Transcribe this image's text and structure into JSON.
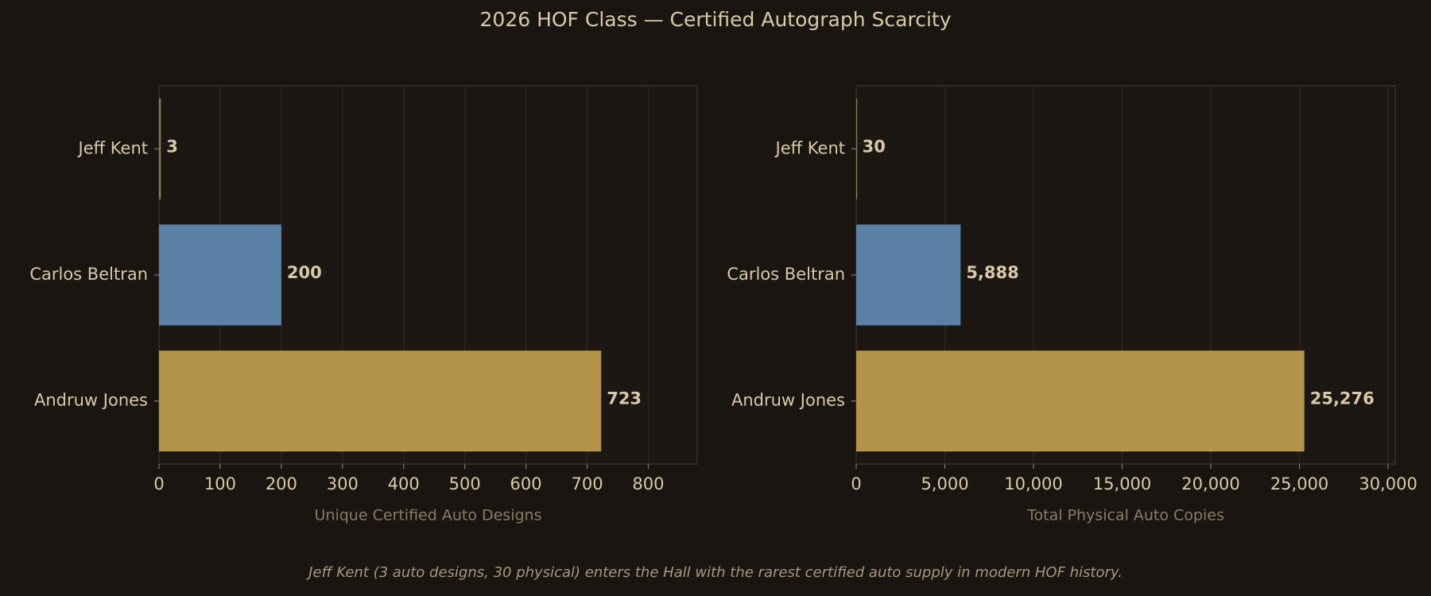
{
  "title": "2026 HOF Class — Certified Autograph Scarcity",
  "caption": "Jeff Kent (3 auto designs, 30 physical) enters the Hall with the rarest certified auto supply in modern HOF history.",
  "chart_data": [
    {
      "type": "barh",
      "categories": [
        "Jeff Kent",
        "Carlos Beltran",
        "Andruw Jones"
      ],
      "values": [
        3,
        200,
        723
      ],
      "colors": [
        "#8c7a5c",
        "#5b80a6",
        "#b3944a"
      ],
      "xlabel": "Unique Certified Auto Designs",
      "xlim": [
        0,
        880
      ],
      "xticks": [
        0,
        100,
        200,
        300,
        400,
        500,
        600,
        700,
        800
      ],
      "grid": true
    },
    {
      "type": "barh",
      "categories": [
        "Jeff Kent",
        "Carlos Beltran",
        "Andruw Jones"
      ],
      "values": [
        30,
        5888,
        25276
      ],
      "value_labels": [
        "30",
        "5,888",
        "25,276"
      ],
      "colors": [
        "#8c7a5c",
        "#5b80a6",
        "#b3944a"
      ],
      "xlabel": "Total Physical Auto Copies",
      "xlim": [
        0,
        30400
      ],
      "xticks": [
        0,
        {
          "value": 5000,
          "label": "5,000"
        },
        {
          "value": 10000,
          "label": "10,000"
        },
        {
          "value": 15000,
          "label": "15,000"
        },
        {
          "value": 20000,
          "label": "20,000"
        },
        {
          "value": 25000,
          "label": "25,000"
        },
        {
          "value": 30000,
          "label": "30,000"
        }
      ],
      "grid": true
    }
  ]
}
